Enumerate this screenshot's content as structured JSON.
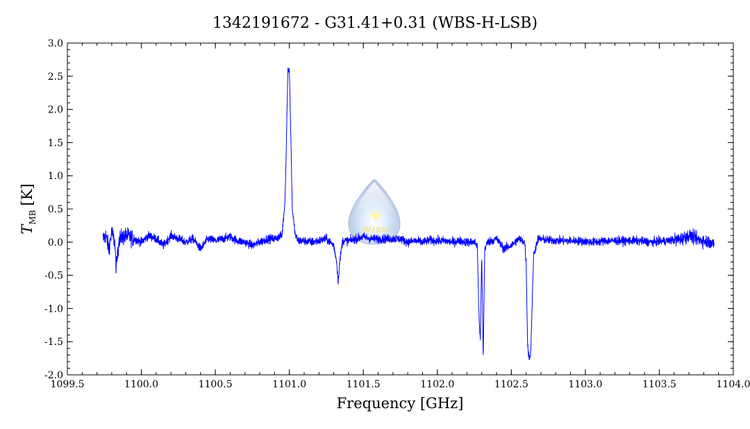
{
  "chart_data": {
    "type": "line",
    "title": "1342191672 - G31.41+0.31 (WBS-H-LSB)",
    "xlabel": "Frequency [GHz]",
    "ylabel_symbol": "T",
    "ylabel_subscript": "MB",
    "ylabel_unit": "[K]",
    "xlim": [
      1099.5,
      1104.0
    ],
    "ylim": [
      -2.0,
      3.0
    ],
    "x_ticks": [
      1099.5,
      1100.0,
      1100.5,
      1101.0,
      1101.5,
      1102.0,
      1102.5,
      1103.0,
      1103.5,
      1104.0
    ],
    "x_tick_labels": [
      "1099.5",
      "1100.0",
      "1100.5",
      "1101.0",
      "1101.5",
      "1102.0",
      "1102.5",
      "1103.0",
      "1103.5",
      "1104.0"
    ],
    "y_ticks": [
      -2.0,
      -1.5,
      -1.0,
      -0.5,
      0.0,
      0.5,
      1.0,
      1.5,
      2.0,
      2.5,
      3.0
    ],
    "y_tick_labels": [
      "-2.0",
      "-1.5",
      "-1.0",
      "-0.5",
      "0.0",
      "0.5",
      "1.0",
      "1.5",
      "2.0",
      "2.5",
      "3.0"
    ],
    "grid": false,
    "line_color": "#0000ff",
    "series": [
      {
        "x": [
          1099.74,
          1099.76,
          1099.78,
          1099.8,
          1099.82,
          1099.83,
          1099.85,
          1099.9,
          1099.95,
          1100.0,
          1100.05,
          1100.1,
          1100.15,
          1100.2,
          1100.25,
          1100.3,
          1100.35,
          1100.4,
          1100.45,
          1100.5,
          1100.55,
          1100.6,
          1100.65,
          1100.7,
          1100.75,
          1100.8,
          1100.85,
          1100.9,
          1100.95,
          1100.97,
          1100.98,
          1100.99,
          1101.0,
          1101.01,
          1101.02,
          1101.04,
          1101.06,
          1101.1,
          1101.15,
          1101.2,
          1101.25,
          1101.3,
          1101.32,
          1101.33,
          1101.34,
          1101.36,
          1101.4,
          1101.45,
          1101.5,
          1101.55,
          1101.6,
          1101.65,
          1101.7,
          1101.75,
          1101.8,
          1101.85,
          1101.9,
          1101.95,
          1102.0,
          1102.05,
          1102.1,
          1102.15,
          1102.2,
          1102.25,
          1102.27,
          1102.28,
          1102.29,
          1102.3,
          1102.31,
          1102.32,
          1102.34,
          1102.4,
          1102.45,
          1102.5,
          1102.55,
          1102.59,
          1102.6,
          1102.61,
          1102.62,
          1102.63,
          1102.64,
          1102.65,
          1102.68,
          1102.75,
          1102.85,
          1102.95,
          1103.05,
          1103.15,
          1103.25,
          1103.35,
          1103.45,
          1103.55,
          1103.65,
          1103.7,
          1103.75,
          1103.8,
          1103.85,
          1103.87
        ],
        "y": [
          0.05,
          0.1,
          -0.1,
          0.15,
          0.0,
          -0.4,
          0.05,
          0.1,
          0.05,
          0.0,
          0.1,
          0.05,
          -0.05,
          0.1,
          0.05,
          0.0,
          0.05,
          -0.1,
          0.05,
          0.02,
          0.05,
          0.08,
          0.02,
          0.0,
          -0.05,
          0.0,
          0.05,
          0.05,
          0.1,
          0.6,
          1.5,
          2.6,
          2.6,
          1.6,
          0.5,
          0.1,
          0.02,
          0.02,
          0.0,
          0.02,
          0.05,
          -0.05,
          -0.3,
          -0.6,
          -0.3,
          0.02,
          0.02,
          0.05,
          0.08,
          0.05,
          0.05,
          0.05,
          0.05,
          0.05,
          0.0,
          0.02,
          0.0,
          0.03,
          0.02,
          0.02,
          0.0,
          0.02,
          0.0,
          0.0,
          -0.05,
          -1.0,
          -1.5,
          -0.2,
          -1.75,
          -0.1,
          0.0,
          0.05,
          -0.1,
          -0.05,
          0.05,
          0.0,
          -0.3,
          -1.55,
          -1.75,
          -1.7,
          -1.0,
          -0.2,
          0.05,
          0.03,
          0.02,
          0.02,
          0.0,
          0.02,
          0.02,
          0.02,
          0.0,
          0.02,
          0.05,
          0.1,
          0.05,
          0.02,
          0.0,
          -0.05
        ]
      }
    ],
    "logo": {
      "text": "WISH",
      "colors": {
        "body": "#9eb6e0",
        "glow": "#dbeafd",
        "star": "#fff6a0"
      }
    }
  }
}
